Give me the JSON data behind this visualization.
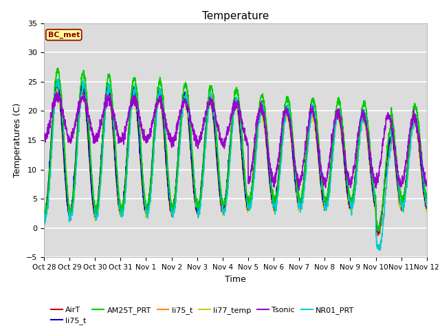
{
  "title": "Temperature",
  "xlabel": "Time",
  "ylabel": "Temperatures (C)",
  "ylim": [
    -5,
    35
  ],
  "bg_color": "#dcdcdc",
  "annotation_text": "BC_met",
  "annotation_bg": "#ffff99",
  "annotation_border": "#8b0000",
  "series": {
    "AirT": {
      "color": "#cc0000",
      "lw": 1.0
    },
    "li75_t_b": {
      "color": "#0000cc",
      "lw": 1.0
    },
    "AM25T_PRT": {
      "color": "#00cc00",
      "lw": 1.2
    },
    "li75_t": {
      "color": "#ff8800",
      "lw": 1.0
    },
    "li77_temp": {
      "color": "#cccc00",
      "lw": 1.0
    },
    "Tsonic": {
      "color": "#9900cc",
      "lw": 1.2
    },
    "NR01_PRT": {
      "color": "#00cccc",
      "lw": 1.2
    }
  },
  "xtick_labels": [
    "Oct 28",
    "Oct 29",
    "Oct 30",
    "Oct 31",
    "Nov 1",
    "Nov 2",
    "Nov 3",
    "Nov 4",
    "Nov 5",
    "Nov 6",
    "Nov 7",
    "Nov 8",
    "Nov 9",
    "Nov 10",
    "Nov 11",
    "Nov 12"
  ],
  "ytick_vals": [
    -5,
    0,
    5,
    10,
    15,
    20,
    25,
    30,
    35
  ]
}
